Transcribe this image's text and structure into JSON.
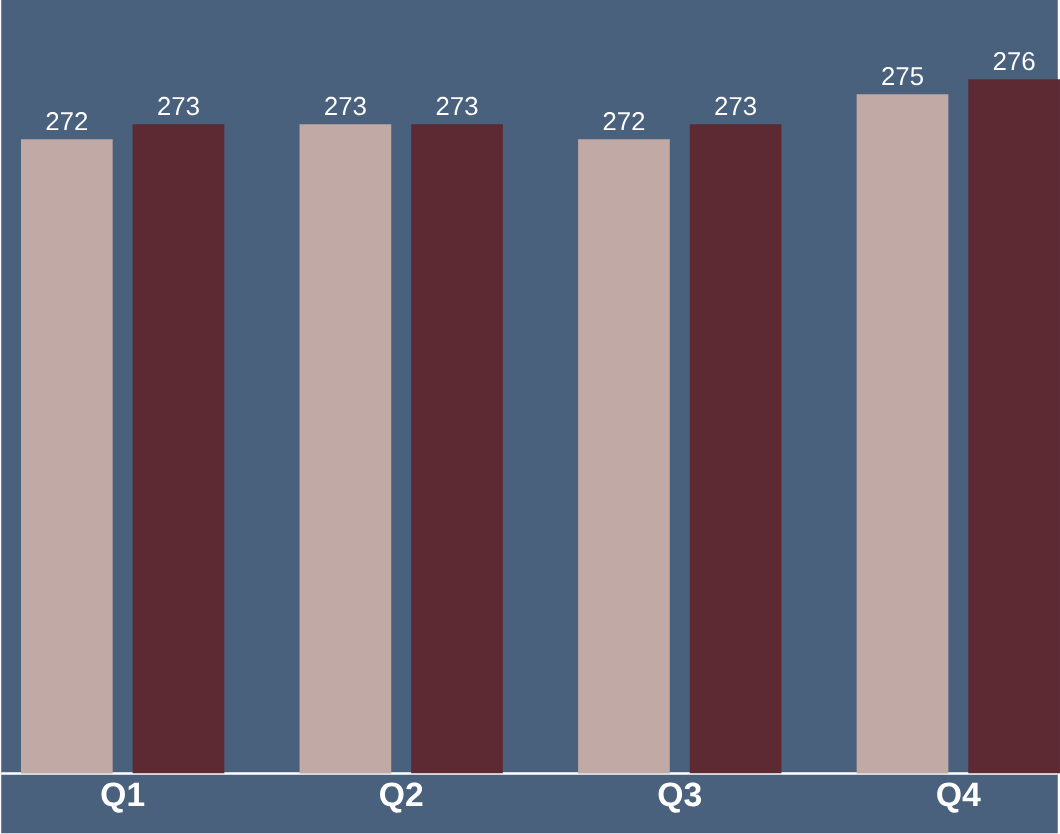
{
  "chart_data": {
    "type": "bar",
    "categories": [
      "Q1",
      "Q2",
      "Q3",
      "Q4"
    ],
    "series": [
      {
        "color": "#c1a9a5",
        "values": [
          272,
          273,
          272,
          275
        ]
      },
      {
        "color": "#5d2a34",
        "values": [
          273,
          273,
          273,
          276
        ]
      }
    ],
    "ylim": [
      229.6,
      281.3
    ],
    "data_labels": true
  }
}
